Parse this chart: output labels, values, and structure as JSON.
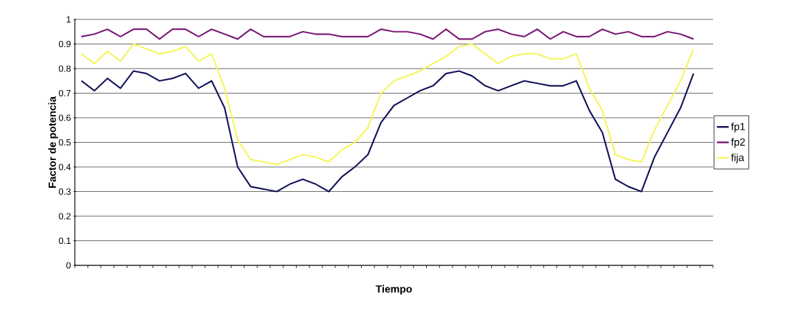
{
  "chart_data": {
    "type": "line",
    "xlabel": "Tiempo",
    "ylabel": "Factor de potencia",
    "categories": [
      null,
      null,
      null,
      null,
      null,
      null,
      null,
      null,
      null,
      null,
      null,
      null,
      null,
      null,
      null,
      null,
      null,
      null,
      null,
      null,
      null,
      null,
      null,
      null,
      null,
      null,
      null,
      null,
      null,
      null,
      null,
      null,
      null,
      null,
      null,
      null,
      null,
      null,
      null,
      null,
      null,
      null,
      null,
      null,
      null,
      null,
      null,
      null,
      null
    ],
    "series": [
      {
        "name": "fp1",
        "color": "#14145a",
        "values": [
          0.75,
          0.71,
          0.76,
          0.72,
          0.79,
          0.78,
          0.75,
          0.76,
          0.78,
          0.72,
          0.75,
          0.64,
          0.4,
          0.32,
          0.31,
          0.3,
          0.33,
          0.35,
          0.33,
          0.3,
          0.36,
          0.4,
          0.45,
          0.58,
          0.65,
          0.68,
          0.71,
          0.73,
          0.78,
          0.79,
          0.77,
          0.73,
          0.71,
          0.73,
          0.75,
          0.74,
          0.73,
          0.73,
          0.75,
          0.63,
          0.54,
          0.35,
          0.32,
          0.3,
          0.44,
          0.54,
          0.64,
          0.78,
          null
        ]
      },
      {
        "name": "fp2",
        "color": "#7a1a78",
        "values": [
          0.93,
          0.94,
          0.96,
          0.93,
          0.96,
          0.96,
          0.92,
          0.96,
          0.96,
          0.93,
          0.96,
          0.94,
          0.92,
          0.96,
          0.93,
          0.93,
          0.93,
          0.95,
          0.94,
          0.94,
          0.93,
          0.93,
          0.93,
          0.96,
          0.95,
          0.95,
          0.94,
          0.92,
          0.96,
          0.92,
          0.92,
          0.95,
          0.96,
          0.94,
          0.93,
          0.96,
          0.92,
          0.95,
          0.93,
          0.93,
          0.96,
          0.94,
          0.95,
          0.93,
          0.93,
          0.95,
          0.94,
          0.92,
          null
        ]
      },
      {
        "name": "fija",
        "color": "#f5f560",
        "values": [
          0.86,
          0.82,
          0.87,
          0.83,
          0.9,
          0.88,
          0.86,
          0.87,
          0.89,
          0.83,
          0.86,
          0.72,
          0.51,
          0.43,
          0.42,
          0.41,
          0.43,
          0.45,
          0.44,
          0.42,
          0.47,
          0.5,
          0.56,
          0.7,
          0.75,
          0.77,
          0.79,
          0.82,
          0.85,
          0.89,
          0.9,
          0.86,
          0.82,
          0.85,
          0.86,
          0.86,
          0.84,
          0.84,
          0.86,
          0.72,
          0.63,
          0.45,
          0.43,
          0.42,
          0.55,
          0.65,
          0.75,
          0.88,
          null
        ]
      }
    ],
    "ylim": [
      0,
      1
    ],
    "yticks": [
      0,
      0.1,
      0.2,
      0.3,
      0.4,
      0.5,
      0.6,
      0.7,
      0.8,
      0.9,
      1
    ],
    "grid": "y",
    "legend": "right",
    "tick_labels": "y"
  }
}
